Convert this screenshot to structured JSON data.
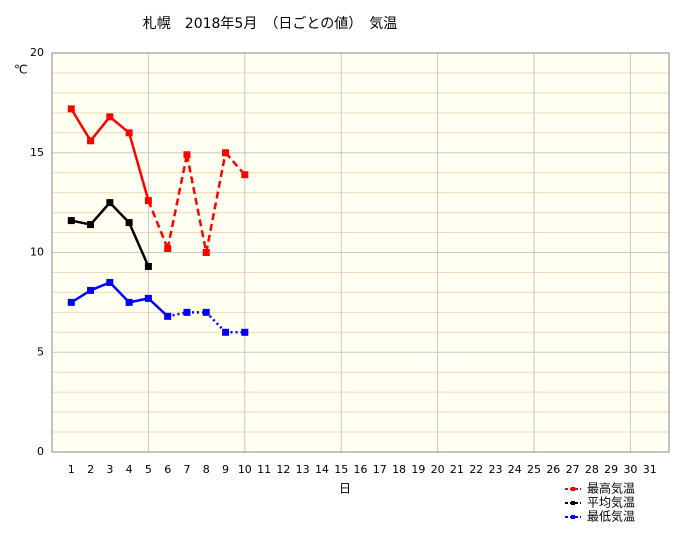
{
  "chart_data": {
    "type": "line",
    "title": "札幌　2018年5月　（日ごとの値）　気温",
    "y_label": "℃",
    "x_label": "日",
    "x": [
      1,
      2,
      3,
      4,
      5,
      6,
      7,
      8,
      9,
      10
    ],
    "xlim": [
      0,
      32
    ],
    "xticks": [
      1,
      2,
      3,
      4,
      5,
      6,
      7,
      8,
      9,
      10,
      11,
      12,
      13,
      14,
      15,
      16,
      17,
      18,
      19,
      20,
      21,
      22,
      23,
      24,
      25,
      26,
      27,
      28,
      29,
      30,
      31
    ],
    "xgrid": [
      5,
      10,
      15,
      20,
      25,
      30
    ],
    "ylim": [
      0,
      20
    ],
    "yticks": [
      0,
      5,
      10,
      15,
      20
    ],
    "yminorticks": [
      1,
      2,
      3,
      4,
      6,
      7,
      8,
      9,
      11,
      12,
      13,
      14,
      16,
      17,
      18,
      19
    ],
    "grid": true,
    "legend": "bottom-right",
    "series": [
      {
        "name": "最高気温",
        "color": "#ff0000",
        "values": [
          17.2,
          15.6,
          16.8,
          16.0,
          12.6,
          10.2,
          14.9,
          10.0,
          15.0,
          13.9
        ],
        "dash_from": 5,
        "dash_style": "dashed"
      },
      {
        "name": "平均気温",
        "color": "#000000",
        "values": [
          11.6,
          11.4,
          12.5,
          11.5,
          9.3,
          null,
          null,
          null,
          null,
          null
        ],
        "dash_from": 5,
        "dash_style": "dashed"
      },
      {
        "name": "最低気温",
        "color": "#0000ff",
        "values": [
          7.5,
          8.1,
          8.5,
          7.5,
          7.7,
          6.8,
          7.0,
          7.0,
          6.0,
          6.0
        ],
        "dash_from": 6,
        "dash_style": "dotted"
      }
    ]
  }
}
